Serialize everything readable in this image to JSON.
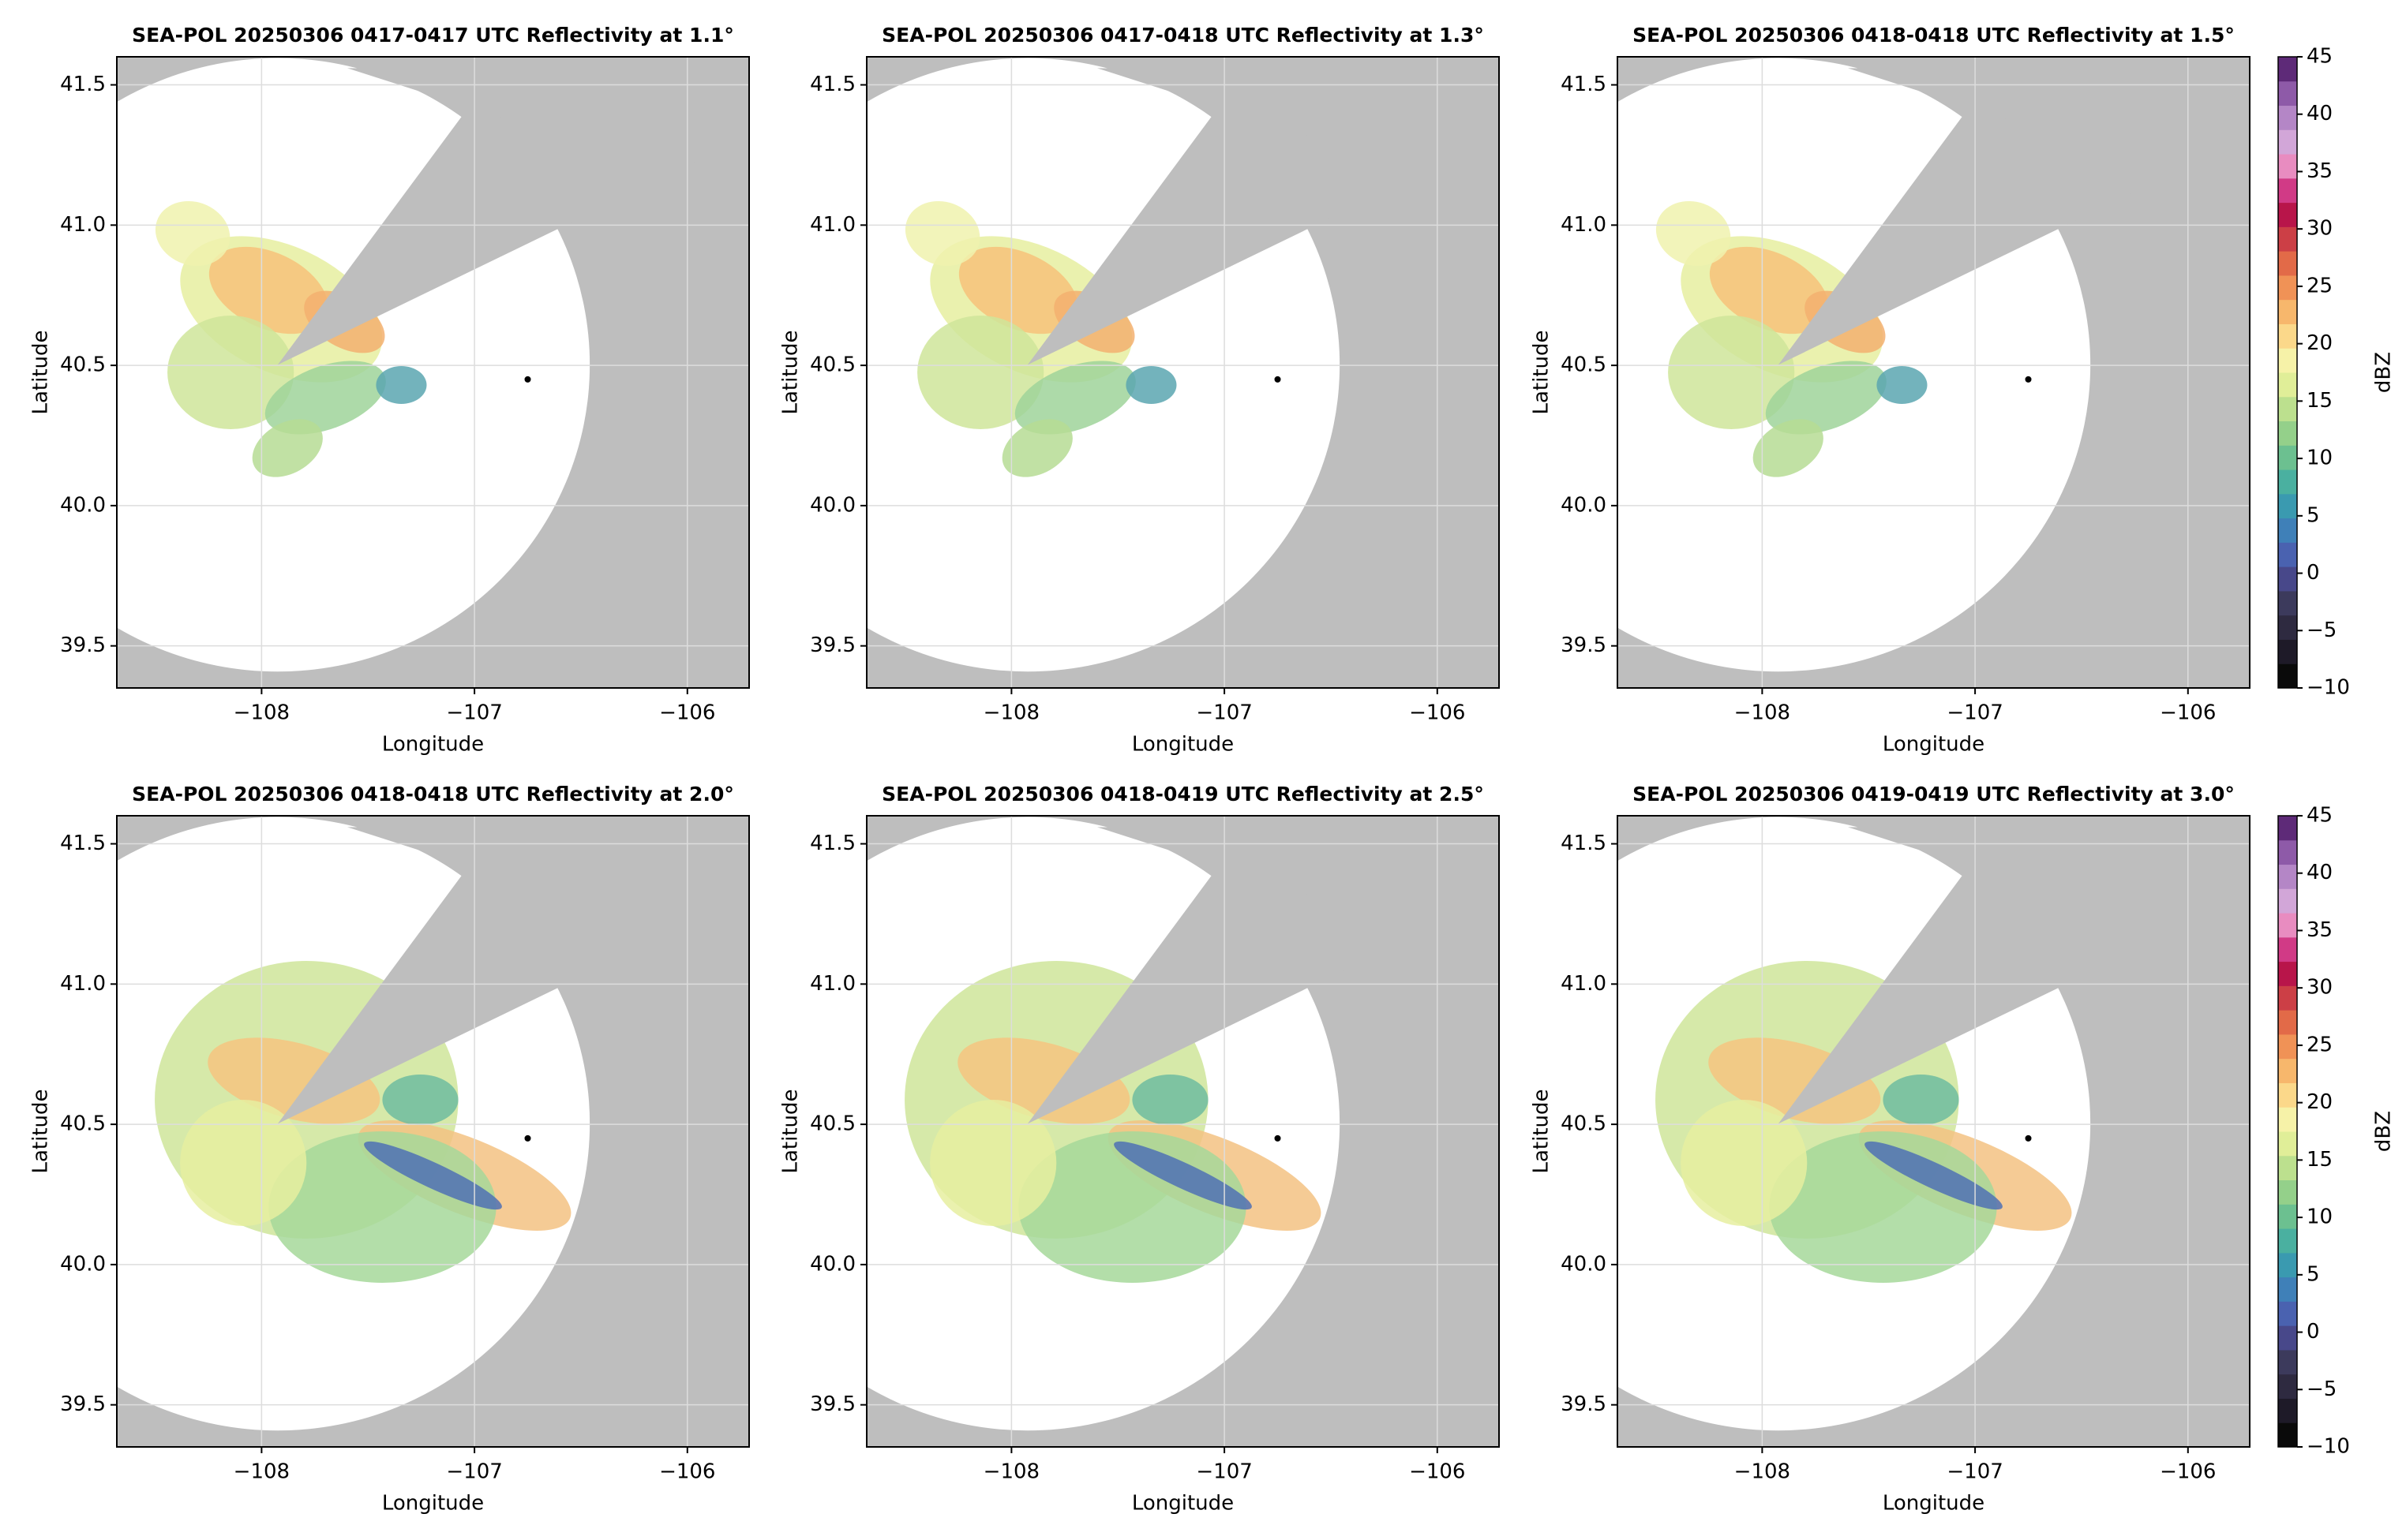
{
  "chart_data": [
    {
      "type": "radar-ppi",
      "title": "SEA-POL 20250306 0417-0417 UTC Reflectivity at 1.1°",
      "xlabel": "Longitude",
      "ylabel": "Latitude",
      "xlim": [
        -108.68,
        -105.71
      ],
      "ylim": [
        39.35,
        41.6
      ],
      "xticks": [
        {
          "value": -108,
          "label": "−108"
        },
        {
          "value": -107,
          "label": "−107"
        },
        {
          "value": -106,
          "label": "−106"
        }
      ],
      "yticks": [
        {
          "value": 39.5,
          "label": "39.5"
        },
        {
          "value": 40.0,
          "label": "40.0"
        },
        {
          "value": 40.5,
          "label": "40.5"
        },
        {
          "value": 41.0,
          "label": "41.0"
        },
        {
          "value": 41.5,
          "label": "41.5"
        }
      ],
      "grid": true,
      "marker": {
        "x": -106.75,
        "y": 40.45
      }
    },
    {
      "type": "radar-ppi",
      "title": "SEA-POL 20250306 0417-0418 UTC Reflectivity at 1.3°",
      "xlabel": "Longitude",
      "ylabel": "Latitude",
      "xlim": [
        -108.68,
        -105.71
      ],
      "ylim": [
        39.35,
        41.6
      ],
      "xticks": [
        {
          "value": -108,
          "label": "−108"
        },
        {
          "value": -107,
          "label": "−107"
        },
        {
          "value": -106,
          "label": "−106"
        }
      ],
      "yticks": [
        {
          "value": 39.5,
          "label": "39.5"
        },
        {
          "value": 40.0,
          "label": "40.0"
        },
        {
          "value": 40.5,
          "label": "40.5"
        },
        {
          "value": 41.0,
          "label": "41.0"
        },
        {
          "value": 41.5,
          "label": "41.5"
        }
      ],
      "grid": true,
      "marker": {
        "x": -106.75,
        "y": 40.45
      }
    },
    {
      "type": "radar-ppi",
      "title": "SEA-POL 20250306 0418-0418 UTC Reflectivity at 1.5°",
      "xlabel": "Longitude",
      "ylabel": "Latitude",
      "xlim": [
        -108.68,
        -105.71
      ],
      "ylim": [
        39.35,
        41.6
      ],
      "xticks": [
        {
          "value": -108,
          "label": "−108"
        },
        {
          "value": -107,
          "label": "−107"
        },
        {
          "value": -106,
          "label": "−106"
        }
      ],
      "yticks": [
        {
          "value": 39.5,
          "label": "39.5"
        },
        {
          "value": 40.0,
          "label": "40.0"
        },
        {
          "value": 40.5,
          "label": "40.5"
        },
        {
          "value": 41.0,
          "label": "41.0"
        },
        {
          "value": 41.5,
          "label": "41.5"
        }
      ],
      "grid": true,
      "marker": {
        "x": -106.75,
        "y": 40.45
      },
      "colorbar": {
        "label": "dBZ",
        "lim": [
          -10,
          45
        ],
        "ticks": [
          {
            "value": -10,
            "label": "−10"
          },
          {
            "value": -5,
            "label": "−5"
          },
          0,
          5,
          10,
          15,
          20,
          25,
          30,
          35,
          40,
          45
        ],
        "colors": [
          "#0a0a0a",
          "#1e1a28",
          "#2e2a40",
          "#3c3a5c",
          "#48488a",
          "#4a62b0",
          "#3f80b8",
          "#3a9ab0",
          "#4ab0a0",
          "#6cc090",
          "#94d08a",
          "#bce08e",
          "#e0ee98",
          "#f6f2a8",
          "#fbd88a",
          "#f7b76c",
          "#f09256",
          "#e26a48",
          "#cc3f46",
          "#b8154a",
          "#d13a86",
          "#e88cc0",
          "#d2a6d8",
          "#b486c6",
          "#8e5aa8",
          "#5e2a78"
        ]
      }
    },
    {
      "type": "radar-ppi",
      "title": "SEA-POL 20250306 0418-0418 UTC Reflectivity at 2.0°",
      "xlabel": "Longitude",
      "ylabel": "Latitude",
      "xlim": [
        -108.68,
        -105.71
      ],
      "ylim": [
        39.35,
        41.6
      ],
      "xticks": [
        {
          "value": -108,
          "label": "−108"
        },
        {
          "value": -107,
          "label": "−107"
        },
        {
          "value": -106,
          "label": "−106"
        }
      ],
      "yticks": [
        {
          "value": 39.5,
          "label": "39.5"
        },
        {
          "value": 40.0,
          "label": "40.0"
        },
        {
          "value": 40.5,
          "label": "40.5"
        },
        {
          "value": 41.0,
          "label": "41.0"
        },
        {
          "value": 41.5,
          "label": "41.5"
        }
      ],
      "grid": true,
      "marker": {
        "x": -106.75,
        "y": 40.45
      }
    },
    {
      "type": "radar-ppi",
      "title": "SEA-POL 20250306 0418-0419 UTC Reflectivity at 2.5°",
      "xlabel": "Longitude",
      "ylabel": "Latitude",
      "xlim": [
        -108.68,
        -105.71
      ],
      "ylim": [
        39.35,
        41.6
      ],
      "xticks": [
        {
          "value": -108,
          "label": "−108"
        },
        {
          "value": -107,
          "label": "−107"
        },
        {
          "value": -106,
          "label": "−106"
        }
      ],
      "yticks": [
        {
          "value": 39.5,
          "label": "39.5"
        },
        {
          "value": 40.0,
          "label": "40.0"
        },
        {
          "value": 40.5,
          "label": "40.5"
        },
        {
          "value": 41.0,
          "label": "41.0"
        },
        {
          "value": 41.5,
          "label": "41.5"
        }
      ],
      "grid": true,
      "marker": {
        "x": -106.75,
        "y": 40.45
      }
    },
    {
      "type": "radar-ppi",
      "title": "SEA-POL 20250306 0419-0419 UTC Reflectivity at 3.0°",
      "xlabel": "Longitude",
      "ylabel": "Latitude",
      "xlim": [
        -108.68,
        -105.71
      ],
      "ylim": [
        39.35,
        41.6
      ],
      "xticks": [
        {
          "value": -108,
          "label": "−108"
        },
        {
          "value": -107,
          "label": "−107"
        },
        {
          "value": -106,
          "label": "−106"
        }
      ],
      "yticks": [
        {
          "value": 39.5,
          "label": "39.5"
        },
        {
          "value": 40.0,
          "label": "40.0"
        },
        {
          "value": 40.5,
          "label": "40.5"
        },
        {
          "value": 41.0,
          "label": "41.0"
        },
        {
          "value": 41.5,
          "label": "41.5"
        }
      ],
      "grid": true,
      "marker": {
        "x": -106.75,
        "y": 40.45
      },
      "colorbar": {
        "label": "dBZ",
        "lim": [
          -10,
          45
        ],
        "ticks": [
          {
            "value": -10,
            "label": "−10"
          },
          {
            "value": -5,
            "label": "−5"
          },
          0,
          5,
          10,
          15,
          20,
          25,
          30,
          35,
          40,
          45
        ],
        "colors": [
          "#0a0a0a",
          "#1e1a28",
          "#2e2a40",
          "#3c3a5c",
          "#48488a",
          "#4a62b0",
          "#3f80b8",
          "#3a9ab0",
          "#4ab0a0",
          "#6cc090",
          "#94d08a",
          "#bce08e",
          "#e0ee98",
          "#f6f2a8",
          "#fbd88a",
          "#f7b76c",
          "#f09256",
          "#e26a48",
          "#cc3f46",
          "#b8154a",
          "#d13a86",
          "#e88cc0",
          "#d2a6d8",
          "#b486c6",
          "#8e5aa8",
          "#5e2a78"
        ]
      }
    }
  ]
}
